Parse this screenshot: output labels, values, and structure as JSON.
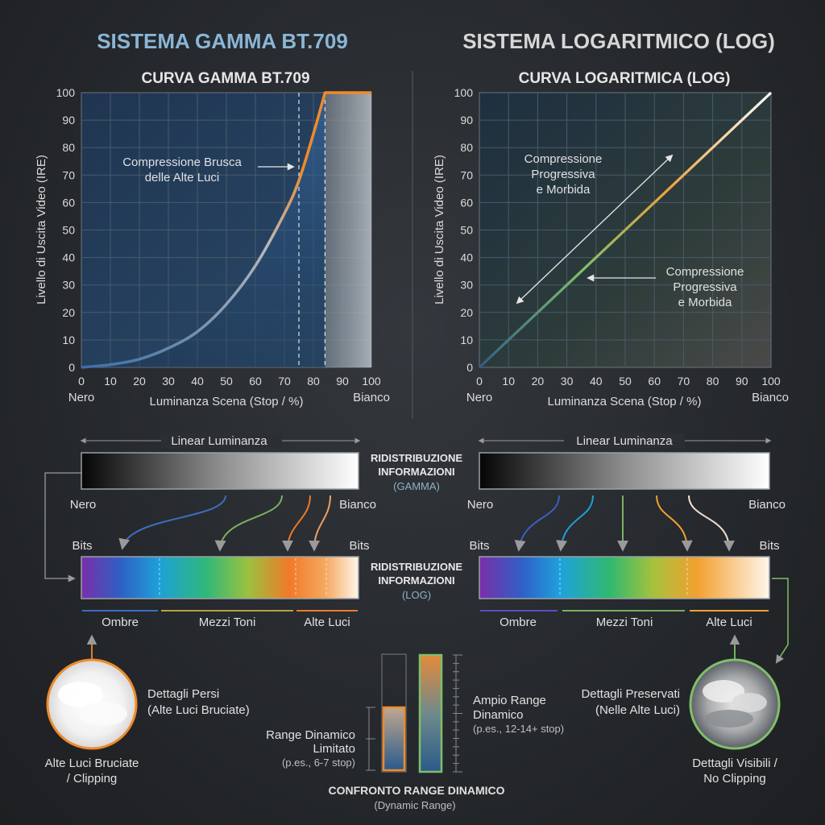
{
  "colors": {
    "gamma_accent": "#f08a2c",
    "log_accent": "#7fbf6a",
    "title_blue": "#8ab6d6",
    "grid": "#4a5a6a"
  },
  "left": {
    "section_title": "SISTEMA GAMMA BT.709",
    "chart_title": "CURVA GAMMA BT.709",
    "annotation": [
      "Compressione Brusca",
      "delle Alte Luci"
    ],
    "bar_top_label": "Linear Luminanza",
    "bar_left": "Nero",
    "bar_right": "Bianco",
    "bits_left": "Bits",
    "bits_right": "Bits",
    "zones": [
      "Ombre",
      "Mezzi Toni",
      "Alte Luci"
    ],
    "circle_caption": [
      "Dettagli Persi",
      "(Alte Luci Bruciate)"
    ],
    "circle_bottom": [
      "Alte Luci Bruciate",
      "/ Clipping"
    ]
  },
  "right": {
    "section_title": "SISTEMA LOGARITMICO (LOG)",
    "chart_title": "CURVA LOGARITMICA (LOG)",
    "annotation_top": [
      "Compressione",
      "Progressiva",
      "e Morbida"
    ],
    "annotation_mid": [
      "Compressione",
      "Progressiva",
      "e Morbida"
    ],
    "bar_top_label": "Linear Luminanza",
    "bar_left": "Nero",
    "bar_right": "Bianco",
    "bits_left": "Bits",
    "bits_right": "Bits",
    "zones": [
      "Ombre",
      "Mezzi Toni",
      "Alte Luci"
    ],
    "circle_caption": [
      "Dettagli Preservati",
      "(Nelle Alte Luci)"
    ],
    "circle_bottom": [
      "Dettagli Visibili /",
      "No Clipping"
    ]
  },
  "center": {
    "redistrib_1": [
      "RIDISTRIBUZIONE",
      "INFORMAZIONI",
      "(GAMMA)"
    ],
    "redistrib_2": [
      "RIDISTRIBUZIONE",
      "INFORMAZIONI",
      "(LOG)"
    ],
    "limited_range": [
      "Range Dinamico",
      "Limitato",
      "(p.es., 6-7 stop)"
    ],
    "wide_range": [
      "Ampio Range",
      "Dinamico",
      "(p.es., 12-14+ stop)"
    ],
    "compare_title": "CONFRONTO RANGE DINAMICO",
    "compare_sub": "(Dynamic Range)"
  },
  "axes": {
    "ylabel": "Livello di Uscita Video (IRE)",
    "xlabel": "Luminanza Scena (Stop / %)",
    "x_start_label": "Nero",
    "x_end_label": "Bianco",
    "ticks": [
      "0",
      "10",
      "20",
      "30",
      "40",
      "50",
      "60",
      "70",
      "80",
      "90",
      "100"
    ]
  },
  "chart_data": [
    {
      "type": "line",
      "title": "CURVA GAMMA BT.709",
      "xlabel": "Luminanza Scena (Stop / %)",
      "ylabel": "Livello di Uscita Video (IRE)",
      "xlim": [
        0,
        100
      ],
      "ylim": [
        0,
        100
      ],
      "grid": true,
      "x": [
        0,
        10,
        20,
        30,
        40,
        50,
        60,
        70,
        75,
        80,
        84,
        100
      ],
      "y": [
        0,
        1,
        3,
        7,
        13,
        23,
        37,
        56,
        68,
        85,
        100,
        100
      ],
      "markers_x": [
        75,
        84
      ]
    },
    {
      "type": "line",
      "title": "CURVA LOGARITMICA (LOG)",
      "xlabel": "Luminanza Scena (Stop / %)",
      "ylabel": "Livello di Uscita Video (IRE)",
      "xlim": [
        0,
        100
      ],
      "ylim": [
        0,
        100
      ],
      "grid": true,
      "x": [
        0,
        10,
        20,
        30,
        40,
        50,
        60,
        70,
        80,
        90,
        100
      ],
      "y": [
        0,
        10,
        20,
        30,
        40,
        50,
        60,
        70,
        80,
        90,
        100
      ]
    }
  ]
}
